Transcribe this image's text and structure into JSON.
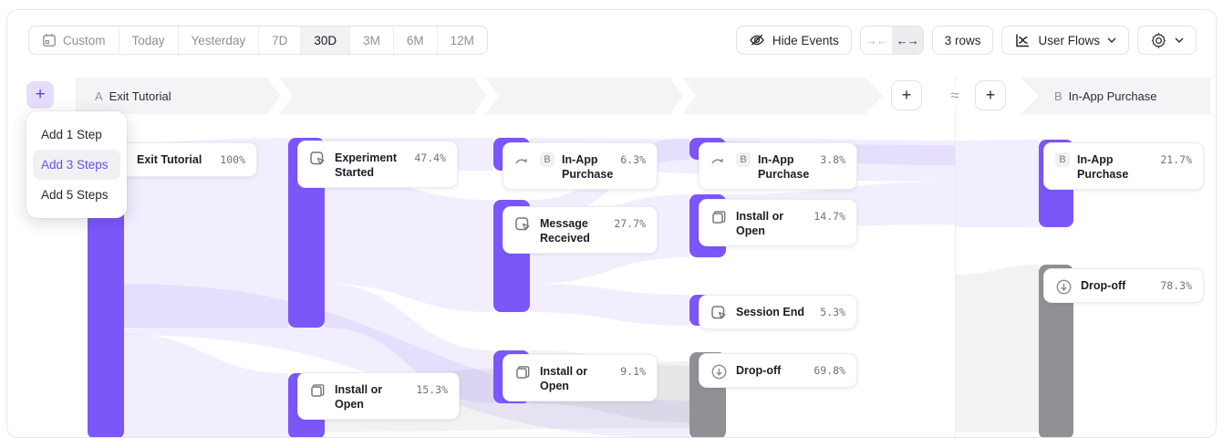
{
  "toolbar": {
    "date_ranges": [
      {
        "label": "Custom"
      },
      {
        "label": "Today"
      },
      {
        "label": "Yesterday"
      },
      {
        "label": "7D"
      },
      {
        "label": "30D"
      },
      {
        "label": "3M"
      },
      {
        "label": "6M"
      },
      {
        "label": "12M"
      }
    ],
    "selected_range": "30D",
    "hide_events_label": "Hide Events",
    "rows_label": "3 rows",
    "chart_type_label": "User Flows"
  },
  "steps_header": {
    "step_a_letter": "A",
    "step_a_label": "Exit Tutorial",
    "step_b_letter": "B",
    "step_b_label": "In-App Purchase"
  },
  "add_menu": {
    "items": [
      {
        "label": "Add 1 Step"
      },
      {
        "label": "Add 3 Steps"
      },
      {
        "label": "Add 5 Steps"
      }
    ],
    "highlighted": "Add 3 Steps"
  },
  "nodes": [
    {
      "name": "Exit Tutorial",
      "pct": "100%",
      "icon": "cursor-click"
    },
    {
      "name": "Experiment Started",
      "pct": "47.4%",
      "icon": "cursor-click"
    },
    {
      "name": "Install or Open",
      "pct": "15.3%",
      "icon": "overlap-squares"
    },
    {
      "name": "In-App Purchase",
      "pct": "6.3%",
      "icon": "forward-arrow",
      "badge": "B"
    },
    {
      "name": "Message Received",
      "pct": "27.7%",
      "icon": "cursor-click"
    },
    {
      "name": "Install or Open",
      "pct": "9.1%",
      "icon": "overlap-squares"
    },
    {
      "name": "In-App Purchase",
      "pct": "3.8%",
      "icon": "forward-arrow",
      "badge": "B"
    },
    {
      "name": "Install or Open",
      "pct": "14.7%",
      "icon": "overlap-squares"
    },
    {
      "name": "Session End",
      "pct": "5.3%",
      "icon": "cursor-click"
    },
    {
      "name": "Drop-off",
      "pct": "69.8%",
      "icon": "drop-off"
    },
    {
      "name": "In-App Purchase",
      "pct": "21.7%",
      "icon": "none",
      "badge": "B"
    },
    {
      "name": "Drop-off",
      "pct": "78.3%",
      "icon": "drop-off"
    }
  ],
  "colors": {
    "accent_purple": "#7b57fa",
    "dropoff_gray": "#909095",
    "band_gray": "#f4f4f6",
    "menu_highlight_text": "#6c4ee6"
  },
  "chart_data": {
    "type": "sankey-flow",
    "title": "User Flows: Exit Tutorial → In-App Purchase",
    "columns": [
      [
        "Exit Tutorial 100%"
      ],
      [
        "Experiment Started 47.4%",
        "Install or Open 15.3%"
      ],
      [
        "In-App Purchase 6.3%",
        "Message Received 27.7%",
        "Install or Open 9.1%"
      ],
      [
        "In-App Purchase 3.8%",
        "Install or Open 14.7%",
        "Session End 5.3%",
        "Drop-off 69.8%"
      ],
      [
        "In-App Purchase 21.7%",
        "Drop-off 78.3%"
      ]
    ]
  }
}
